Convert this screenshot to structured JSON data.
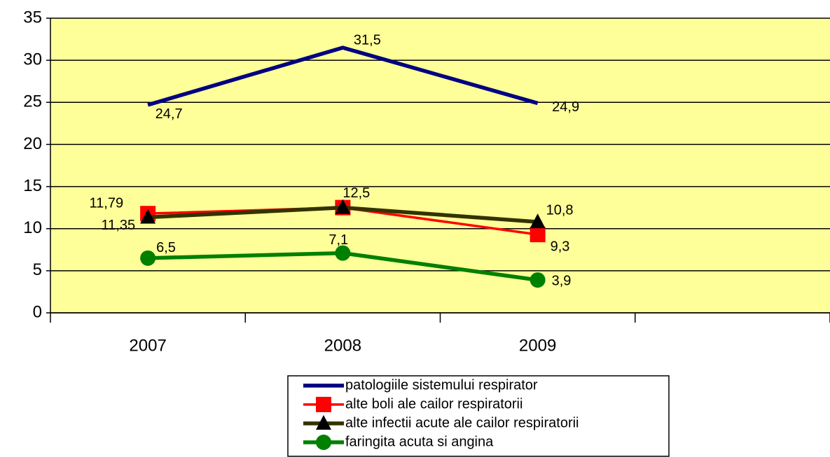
{
  "chart_data": {
    "type": "line",
    "categories": [
      "2007",
      "2008",
      "2009",
      null
    ],
    "series": [
      {
        "name": "patologiile sistemului respirator",
        "color": "#000080",
        "marker": "none",
        "values": [
          24.7,
          31.5,
          24.9,
          null
        ],
        "value_labels": [
          "24,7",
          "31,5",
          "24,9",
          null
        ]
      },
      {
        "name": "alte boli ale cailor respiratorii",
        "color": "#ff0000",
        "marker": "square",
        "values": [
          11.79,
          12.5,
          9.3,
          null
        ],
        "value_labels": [
          "11,79",
          "12,5",
          "9,3",
          null
        ]
      },
      {
        "name": "alte infectii acute ale cailor respiratorii",
        "color": "#333300",
        "marker": "triangle",
        "values": [
          11.35,
          12.5,
          10.8,
          null
        ],
        "value_labels": [
          "11,35",
          null,
          "10,8",
          null
        ]
      },
      {
        "name": "faringita acuta si angina",
        "color": "#008000",
        "marker": "circle",
        "values": [
          6.5,
          7.1,
          3.9,
          null
        ],
        "value_labels": [
          "6,5",
          "7,1",
          "3,9",
          null
        ]
      }
    ],
    "ylim": [
      0,
      35
    ],
    "yticks": [
      0,
      5,
      10,
      15,
      20,
      25,
      30,
      35
    ],
    "grid": true,
    "background": "#ffff99",
    "legend": "bottom"
  }
}
